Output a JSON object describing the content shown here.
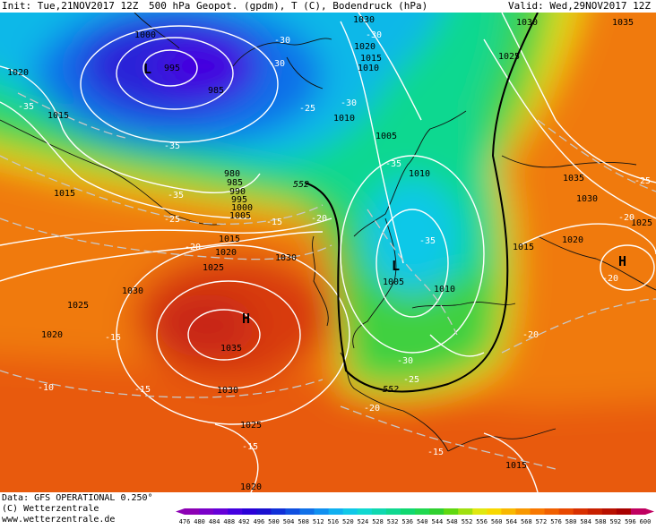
{
  "header": {
    "init": "Init: Tue,21NOV2017 12Z",
    "title": "500 hPa Geopot. (gpdm), T (C), Bodendruck (hPa)",
    "valid": "Valid: Wed,29NOV2017 12Z"
  },
  "footer": {
    "data": "Data: GFS OPERATIONAL 0.250°",
    "copyright": "(C) Wetterzentrale",
    "url": "www.wetterzentrale.de"
  },
  "scale": {
    "labels": [
      "476",
      "480",
      "484",
      "488",
      "492",
      "496",
      "500",
      "504",
      "508",
      "512",
      "516",
      "520",
      "524",
      "528",
      "532",
      "536",
      "540",
      "544",
      "548",
      "552",
      "556",
      "560",
      "564",
      "568",
      "572",
      "576",
      "580",
      "584",
      "588",
      "592",
      "596",
      "600"
    ],
    "colors": [
      "#8c00b4",
      "#7a00c8",
      "#6600d8",
      "#4400e0",
      "#2a00d8",
      "#1a10d0",
      "#1030d8",
      "#1050e0",
      "#1070e8",
      "#1090f0",
      "#10b0f0",
      "#10c8e8",
      "#10d8d0",
      "#10d8b0",
      "#10d890",
      "#10d870",
      "#20d850",
      "#30d030",
      "#60d810",
      "#a0e010",
      "#e0e810",
      "#f8d800",
      "#f8b800",
      "#f89800",
      "#f87800",
      "#f06000",
      "#e84800",
      "#d83000",
      "#c82000",
      "#b81000",
      "#a80000",
      "#c00060"
    ]
  },
  "pressure_labels": [
    {
      "text": "1000"
    },
    {
      "text": "995"
    },
    {
      "text": "985"
    },
    {
      "text": "1020"
    },
    {
      "text": "1015"
    },
    {
      "text": "980"
    },
    {
      "text": "985"
    },
    {
      "text": "990"
    },
    {
      "text": "995"
    },
    {
      "text": "1000"
    },
    {
      "text": "1005"
    },
    {
      "text": "1015"
    },
    {
      "text": "1020"
    },
    {
      "text": "1025"
    },
    {
      "text": "1030"
    },
    {
      "text": "1030"
    },
    {
      "text": "1025"
    },
    {
      "text": "1020"
    },
    {
      "text": "1035"
    },
    {
      "text": "1030"
    },
    {
      "text": "1025"
    },
    {
      "text": "1020"
    },
    {
      "text": "1030"
    },
    {
      "text": "1020"
    },
    {
      "text": "1015"
    },
    {
      "text": "1010"
    },
    {
      "text": "1010"
    },
    {
      "text": "1005"
    },
    {
      "text": "1010"
    },
    {
      "text": "1005"
    },
    {
      "text": "1010"
    },
    {
      "text": "1030"
    },
    {
      "text": "1025"
    },
    {
      "text": "1035"
    },
    {
      "text": "1035"
    },
    {
      "text": "1030"
    },
    {
      "text": "1020"
    },
    {
      "text": "1015"
    },
    {
      "text": "1025"
    },
    {
      "text": "1015"
    },
    {
      "text": "1015"
    }
  ],
  "temperature_labels": [
    {
      "text": "-35"
    },
    {
      "text": "-30"
    },
    {
      "text": "-35"
    },
    {
      "text": "-35"
    },
    {
      "text": "-30"
    },
    {
      "text": "-25"
    },
    {
      "text": "-25"
    },
    {
      "text": "-20"
    },
    {
      "text": "-15"
    },
    {
      "text": "-20"
    },
    {
      "text": "-15"
    },
    {
      "text": "-10"
    },
    {
      "text": "-15"
    },
    {
      "text": "-15"
    },
    {
      "text": "-20"
    },
    {
      "text": "-30"
    },
    {
      "text": "-30"
    },
    {
      "text": "-35"
    },
    {
      "text": "-35"
    },
    {
      "text": "-30"
    },
    {
      "text": "-25"
    },
    {
      "text": "-20"
    },
    {
      "text": "-20"
    },
    {
      "text": "-25"
    },
    {
      "text": "-20"
    },
    {
      "text": "-15"
    }
  ],
  "geopotential_labels": [
    {
      "text": "552"
    },
    {
      "text": "552"
    }
  ],
  "centers": [
    {
      "text": "L"
    },
    {
      "text": "H"
    },
    {
      "text": "L"
    },
    {
      "text": "H"
    }
  ]
}
